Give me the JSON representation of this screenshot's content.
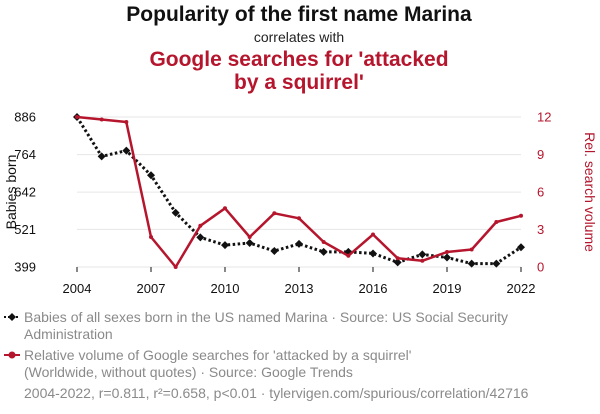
{
  "chart_data": {
    "type": "line",
    "title": "Popularity of the first name Marina",
    "subtitle": "correlates with",
    "title2_lines": [
      "Google searches for 'attacked",
      "by a squirrel'"
    ],
    "x": [
      2004,
      2005,
      2006,
      2007,
      2008,
      2009,
      2010,
      2011,
      2012,
      2013,
      2014,
      2015,
      2016,
      2017,
      2018,
      2019,
      2020,
      2021,
      2022
    ],
    "x_ticks": [
      "2004",
      "2007",
      "2010",
      "2013",
      "2016",
      "2019",
      "2022"
    ],
    "xlim": [
      2004,
      2022
    ],
    "left_axis": {
      "label": "Babies born",
      "ticks": [
        "399",
        "521",
        "642",
        "764",
        "886"
      ],
      "ylim": [
        399,
        886
      ]
    },
    "right_axis": {
      "label": "Rel. search volume",
      "ticks": [
        "0",
        "3",
        "6",
        "9",
        "12"
      ],
      "ylim": [
        0,
        12
      ]
    },
    "series": [
      {
        "name": "Babies of all sexes born in the US named Marina",
        "axis": "left",
        "color": "#111111",
        "style": "dotted",
        "marker": "diamond",
        "values": [
          886,
          758,
          777,
          697,
          575,
          495,
          470,
          477,
          451,
          474,
          448,
          448,
          443,
          414,
          440,
          430,
          410,
          410,
          463
        ]
      },
      {
        "name": "Relative volume of Google searches for 'attacked by a squirrel'",
        "axis": "right",
        "color": "#b5162d",
        "style": "solid",
        "marker": "circle",
        "values": [
          12,
          11.8,
          11.6,
          2.4,
          0,
          3.3,
          4.7,
          2.4,
          4.3,
          3.9,
          2.0,
          0.9,
          2.6,
          0.7,
          0.5,
          1.2,
          1.4,
          3.6,
          4.1
        ]
      }
    ]
  },
  "legend": [
    {
      "lines": [
        "Babies of all sexes born in the US named Marina · Source: US Social Security",
        "Administration"
      ]
    },
    {
      "lines": [
        "Relative volume of Google searches for 'attacked by a squirrel'",
        "(Worldwide, without quotes) · Source: Google Trends"
      ]
    }
  ],
  "footer": "2004-2022, r=0.811, r²=0.658, p<0.01 · tylervigen.com/spurious/correlation/42716"
}
